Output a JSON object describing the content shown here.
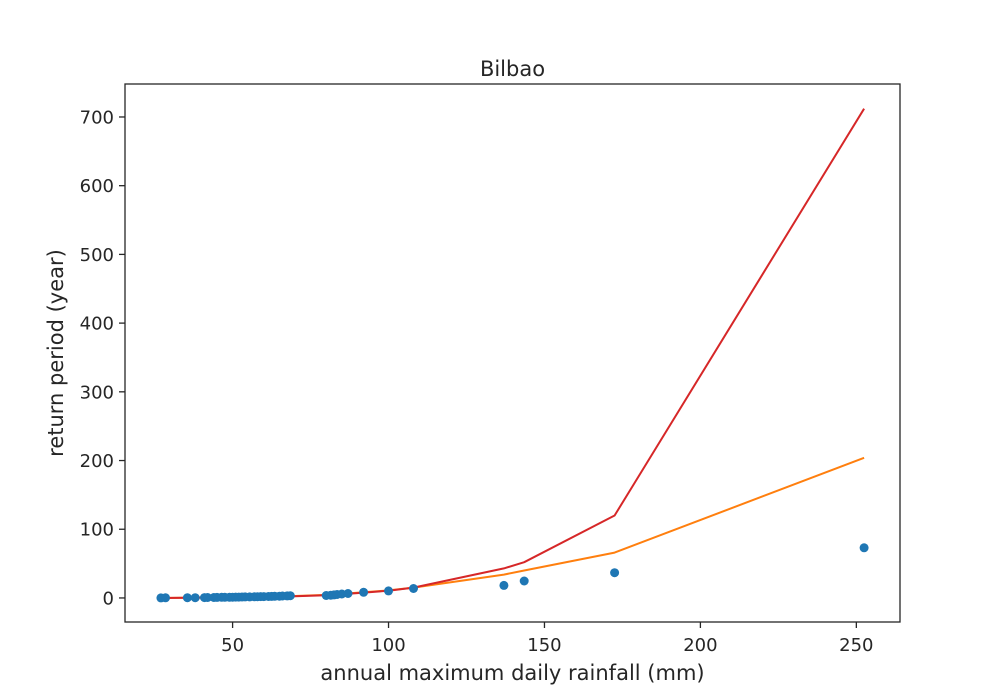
{
  "chart_data": {
    "type": "scatter",
    "title": "Bilbao",
    "xlabel": "annual maximum daily rainfall (mm)",
    "ylabel": "return period (year)",
    "xlim": [
      15.5,
      264
    ],
    "ylim": [
      -35,
      748
    ],
    "xticks": [
      50,
      100,
      150,
      200,
      250
    ],
    "yticks": [
      0,
      100,
      200,
      300,
      400,
      500,
      600,
      700
    ],
    "grid": false,
    "legend": "none",
    "colors": {
      "points": "#1f77b4",
      "line_orange": "#ff7f0e",
      "line_red": "#d62728",
      "axes": "#262626"
    },
    "series": [
      {
        "type": "scatter",
        "color": "#1f77b4",
        "x": [
          27,
          28.5,
          35.5,
          38,
          41,
          42,
          44,
          45,
          46.5,
          47.5,
          49,
          50,
          51,
          52,
          53,
          54,
          55.5,
          57,
          58,
          59,
          60,
          61.5,
          62.5,
          63.5,
          65,
          66,
          67.5,
          68.5,
          80,
          81.5,
          82.5,
          83.5,
          85,
          87,
          92,
          100,
          108,
          137,
          143.5,
          172.5,
          252.5
        ],
        "y": [
          0.1,
          0.2,
          0.3,
          0.4,
          0.5,
          0.6,
          0.7,
          0.8,
          0.9,
          1.0,
          1.0,
          1.1,
          1.2,
          1.3,
          1.4,
          1.5,
          1.6,
          1.7,
          1.8,
          1.9,
          2.0,
          2.1,
          2.2,
          2.4,
          2.6,
          2.8,
          3.0,
          3.3,
          3.6,
          4.0,
          4.5,
          5.0,
          5.7,
          6.5,
          8.2,
          10.3,
          13.7,
          18.3,
          24.6,
          36.7,
          73.0
        ]
      },
      {
        "type": "line",
        "color": "#ff7f0e",
        "x": [
          27,
          50,
          70,
          80,
          90,
          100,
          108,
          137,
          143.5,
          172.5,
          252.5
        ],
        "y": [
          0,
          1.2,
          2.8,
          4.5,
          7.5,
          11,
          15,
          34,
          40,
          66,
          204
        ]
      },
      {
        "type": "line",
        "color": "#d62728",
        "x": [
          27,
          50,
          70,
          80,
          90,
          100,
          108,
          137,
          143.5,
          172.5,
          252.5
        ],
        "y": [
          0,
          0.8,
          2.5,
          4,
          7,
          10.5,
          15,
          43,
          52,
          120,
          712
        ]
      }
    ]
  }
}
